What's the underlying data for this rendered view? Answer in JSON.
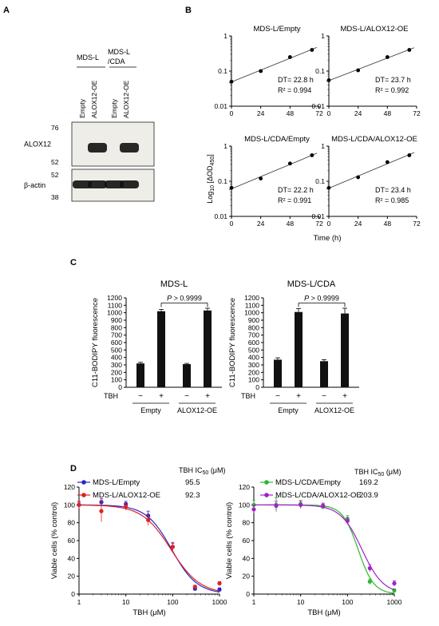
{
  "panel_labels": {
    "a": "A",
    "b": "B",
    "c": "C",
    "d": "D"
  },
  "panelA": {
    "groups": [
      "MDS-L",
      "MDS-L\n/CDA"
    ],
    "lanes": [
      "Empty",
      "ALOX12-OE",
      "Empty",
      "ALOX12-OE"
    ],
    "blots": [
      {
        "name": "ALOX12",
        "markers": [
          "76",
          "52"
        ],
        "band_intensity": [
          0,
          1,
          0,
          1
        ]
      },
      {
        "name": "β-actin",
        "markers": [
          "52",
          "38"
        ],
        "band_intensity": [
          1,
          1,
          1,
          1
        ]
      }
    ]
  },
  "panelB_ylabel_html": "Log<tspan font-size='7' dy='2'>10</tspan><tspan dy='-2'> [ΔOD</tspan><tspan font-size='7' dy='2'>450</tspan><tspan dy='-2'>]</tspan>",
  "panelB_xlabel": "Time (h)",
  "panelC_ylabel": "C11-BODIPY fluorescence",
  "panelC_tbh_label": "TBH",
  "panelD_ylabel": "Viable cells (% control)",
  "panelD_xlabel": "TBH (μM)",
  "panelD_ic50_header": "TBH IC<tspan font-size='7' dy='2'>50</tspan><tspan dy='-2'> (μM)</tspan>",
  "chart_data": [
    {
      "panel": "B",
      "type": "scatter",
      "title": "MDS-L/Empty",
      "x": [
        0,
        24,
        48,
        66
      ],
      "y": [
        0.05,
        0.1,
        0.25,
        0.4
      ],
      "xlim": [
        0,
        72
      ],
      "ylim": [
        0.01,
        1
      ],
      "yscale": "log",
      "xticks": [
        "0",
        "24",
        "48",
        "72"
      ],
      "yticks": [
        "0.01",
        "0.1",
        "1"
      ],
      "annotations": [
        "DT= 22.8 h",
        "R² = 0.994"
      ]
    },
    {
      "panel": "B",
      "type": "scatter",
      "title": "MDS-L/ALOX12-OE",
      "x": [
        0,
        24,
        48,
        66
      ],
      "y": [
        0.055,
        0.105,
        0.25,
        0.4
      ],
      "xlim": [
        0,
        72
      ],
      "ylim": [
        0.01,
        1
      ],
      "yscale": "log",
      "xticks": [
        "0",
        "24",
        "48",
        "72"
      ],
      "yticks": [
        "0.01",
        "0.1",
        "1"
      ],
      "annotations": [
        "DT= 23.7 h",
        "R² = 0.992"
      ]
    },
    {
      "panel": "B",
      "type": "scatter",
      "title": "MDS-L/CDA/Empty",
      "x": [
        0,
        24,
        48,
        66
      ],
      "y": [
        0.065,
        0.12,
        0.32,
        0.55
      ],
      "xlim": [
        0,
        72
      ],
      "ylim": [
        0.01,
        1
      ],
      "yscale": "log",
      "xticks": [
        "0",
        "24",
        "48",
        "72"
      ],
      "yticks": [
        "0.01",
        "0.1",
        "1"
      ],
      "annotations": [
        "DT= 22.2 h",
        "R² = 0.991"
      ]
    },
    {
      "panel": "B",
      "type": "scatter",
      "title": "MDS-L/CDA/ALOX12-OE",
      "x": [
        0,
        24,
        48,
        66
      ],
      "y": [
        0.065,
        0.13,
        0.35,
        0.55
      ],
      "xlim": [
        0,
        72
      ],
      "ylim": [
        0.01,
        1
      ],
      "yscale": "log",
      "xticks": [
        "0",
        "24",
        "48",
        "72"
      ],
      "yticks": [
        "0.01",
        "0.1",
        "1"
      ],
      "annotations": [
        "DT= 23.4 h",
        "R² = 0.985"
      ]
    },
    {
      "panel": "C",
      "type": "bar",
      "title": "MDS-L",
      "categories": [
        "−",
        "+",
        "−",
        "+"
      ],
      "values": [
        320,
        1020,
        310,
        1030
      ],
      "errors": [
        15,
        25,
        10,
        30
      ],
      "groups": [
        "Empty",
        "ALOX12-OE"
      ],
      "ylim": [
        0,
        1200
      ],
      "yticks": [
        "0",
        "100",
        "200",
        "300",
        "400",
        "500",
        "600",
        "700",
        "800",
        "900",
        "1000",
        "1100",
        "1200"
      ],
      "pvalue": "P > 0.9999"
    },
    {
      "panel": "C",
      "type": "bar",
      "title": "MDS-L/CDA",
      "categories": [
        "−",
        "+",
        "−",
        "+"
      ],
      "values": [
        370,
        1010,
        350,
        990
      ],
      "errors": [
        25,
        45,
        20,
        70
      ],
      "groups": [
        "Empty",
        "ALOX12-OE"
      ],
      "ylim": [
        0,
        1200
      ],
      "yticks": [
        "0",
        "100",
        "200",
        "300",
        "400",
        "500",
        "600",
        "700",
        "800",
        "900",
        "1000",
        "1100",
        "1200"
      ],
      "pvalue": "P > 0.9999"
    },
    {
      "panel": "D",
      "type": "line",
      "xscale": "log",
      "xlim": [
        1,
        1000
      ],
      "ylim": [
        0,
        120
      ],
      "xticks": [
        "1",
        "10",
        "100",
        "1000"
      ],
      "yticks": [
        "0",
        "20",
        "40",
        "60",
        "80",
        "100",
        "120"
      ],
      "series": [
        {
          "name": "MDS-L/Empty",
          "ic50": "95.5",
          "color": "#2626cc",
          "x": [
            1,
            3,
            10,
            30,
            100,
            300,
            1000
          ],
          "y": [
            100,
            103,
            101,
            88,
            53,
            6,
            5
          ],
          "err": [
            3,
            4,
            3,
            5,
            4,
            2,
            2
          ]
        },
        {
          "name": "MDS-L/ALOX12-OE",
          "ic50": "92.3",
          "color": "#e02020",
          "x": [
            1,
            3,
            10,
            30,
            100,
            300,
            1000
          ],
          "y": [
            100,
            93,
            98,
            83,
            53,
            8,
            12
          ],
          "err": [
            4,
            12,
            4,
            6,
            5,
            2,
            2
          ]
        }
      ]
    },
    {
      "panel": "D",
      "type": "line",
      "xscale": "log",
      "xlim": [
        1,
        1000
      ],
      "ylim": [
        0,
        120
      ],
      "xticks": [
        "1",
        "10",
        "100",
        "1000"
      ],
      "yticks": [
        "0",
        "20",
        "40",
        "60",
        "80",
        "100",
        "120"
      ],
      "series": [
        {
          "name": "MDS-L/CDA/Empty",
          "ic50": "169.2",
          "color": "#2db82d",
          "x": [
            1,
            3,
            10,
            30,
            100,
            300,
            1000
          ],
          "y": [
            100,
            100,
            101,
            98,
            84,
            14,
            4
          ],
          "err": [
            5,
            8,
            4,
            3,
            4,
            3,
            2
          ]
        },
        {
          "name": "MDS-L/CDA/ALOX12-OE",
          "ic50": "203.9",
          "color": "#a020c8",
          "x": [
            1,
            3,
            10,
            30,
            100,
            300,
            1000
          ],
          "y": [
            95,
            99,
            100,
            99,
            82,
            29,
            12
          ],
          "err": [
            4,
            5,
            4,
            3,
            4,
            4,
            3
          ]
        }
      ]
    }
  ]
}
